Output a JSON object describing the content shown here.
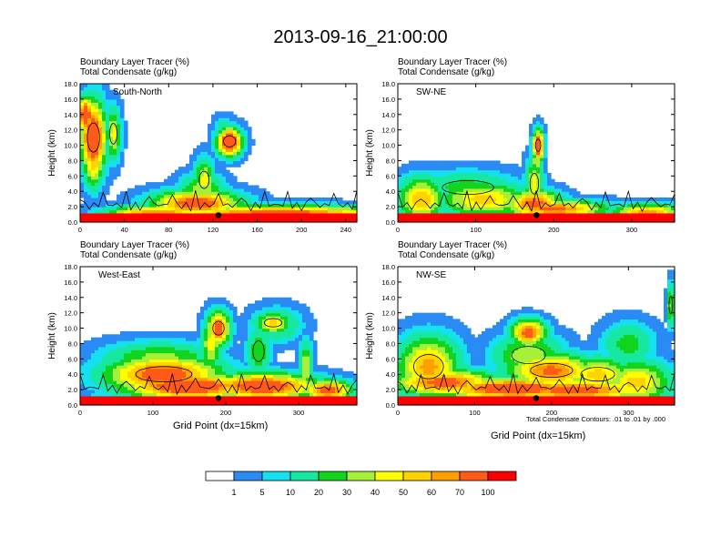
{
  "title": "2013-09-16_21:00:00",
  "footer_note": "Total Condensate Contours: .01 to .01 by .000",
  "colorbar": {
    "colors": [
      "#ffffff",
      "#2a8bf5",
      "#14e0f0",
      "#17e8a0",
      "#13d41c",
      "#a6f03a",
      "#ffff00",
      "#ffd200",
      "#ffa000",
      "#ff5a1a",
      "#ff0000"
    ],
    "labels": [
      "1",
      "5",
      "10",
      "20",
      "30",
      "40",
      "50",
      "60",
      "70",
      "100"
    ]
  },
  "chart_data": [
    {
      "type": "heatmap",
      "panel_label": "South-North",
      "subtitle_1": "Boundary Layer Tracer   (%)",
      "subtitle_2": "Total Condensate   (g/kg)",
      "xlabel": "",
      "ylabel": "Height (km)",
      "xlim": [
        0,
        250
      ],
      "ylim": [
        0,
        18
      ],
      "xticks": [
        "0",
        "40",
        "80",
        "120",
        "160",
        "200",
        "240"
      ],
      "yticks": [
        "0.0",
        "2.0",
        "4.0",
        "6.0",
        "8.0",
        "10.0",
        "12.0",
        "14.0",
        "16.0",
        "18.0"
      ],
      "marker_x": 125
    },
    {
      "type": "heatmap",
      "panel_label": "SW-NE",
      "subtitle_1": "Boundary Layer Tracer   (%)",
      "subtitle_2": "Total Condensate   (g/kg)",
      "xlabel": "",
      "ylabel": "Height (km)",
      "xlim": [
        0,
        355
      ],
      "ylim": [
        0,
        18
      ],
      "xticks": [
        "0",
        "100",
        "200",
        "300"
      ],
      "yticks": [
        "0.0",
        "2.0",
        "4.0",
        "6.0",
        "8.0",
        "10.0",
        "12.0",
        "14.0",
        "16.0",
        "18.0"
      ],
      "marker_x": 178
    },
    {
      "type": "heatmap",
      "panel_label": "West-East",
      "subtitle_1": "Boundary Layer Tracer   (%)",
      "subtitle_2": "Total Condensate   (g/kg)",
      "xlabel": "Grid Point (dx=15km)",
      "ylabel": "Height (km)",
      "xlim": [
        0,
        380
      ],
      "ylim": [
        0,
        18
      ],
      "xticks": [
        "0",
        "100",
        "200",
        "300"
      ],
      "yticks": [
        "0.0",
        "2.0",
        "4.0",
        "6.0",
        "8.0",
        "10.0",
        "12.0",
        "14.0",
        "16.0",
        "18.0"
      ],
      "marker_x": 190
    },
    {
      "type": "heatmap",
      "panel_label": "NW-SE",
      "subtitle_1": "Boundary Layer Tracer   (%)",
      "subtitle_2": "Total Condensate   (g/kg)",
      "xlabel": "Grid Point (dx=15km)",
      "ylabel": "Height (km)",
      "xlim": [
        0,
        360
      ],
      "ylim": [
        0,
        18
      ],
      "xticks": [
        "0",
        "100",
        "200",
        "300"
      ],
      "yticks": [
        "0.0",
        "2.0",
        "4.0",
        "6.0",
        "8.0",
        "10.0",
        "12.0",
        "14.0",
        "16.0",
        "18.0"
      ],
      "marker_x": 180
    }
  ]
}
